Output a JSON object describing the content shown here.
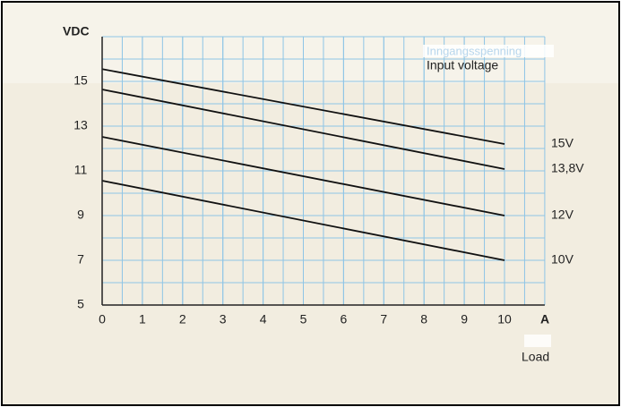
{
  "chart_data": {
    "type": "line",
    "y_label": "VDC",
    "x_label": "A",
    "legend_title_faint": "Inngangsspenning",
    "legend_title": "Input voltage",
    "caption": "Load",
    "x": [
      0,
      10
    ],
    "series": [
      {
        "name": "15V",
        "color": "#111111",
        "values": [
          15.55,
          12.2
        ]
      },
      {
        "name": "13,8V",
        "color": "#111111",
        "values": [
          14.64,
          11.08
        ]
      },
      {
        "name": "12V",
        "color": "#111111",
        "values": [
          12.52,
          9.0
        ]
      },
      {
        "name": "10V",
        "color": "#111111",
        "values": [
          10.56,
          7.0
        ]
      }
    ],
    "xlim": [
      0,
      11
    ],
    "xticks": [
      0,
      1,
      2,
      3,
      4,
      5,
      6,
      7,
      8,
      9,
      10
    ],
    "ylim": [
      5,
      17
    ],
    "yticks": [
      5,
      7,
      9,
      11,
      13,
      15
    ],
    "grid": true,
    "grid_color": "#8ec5e6"
  }
}
